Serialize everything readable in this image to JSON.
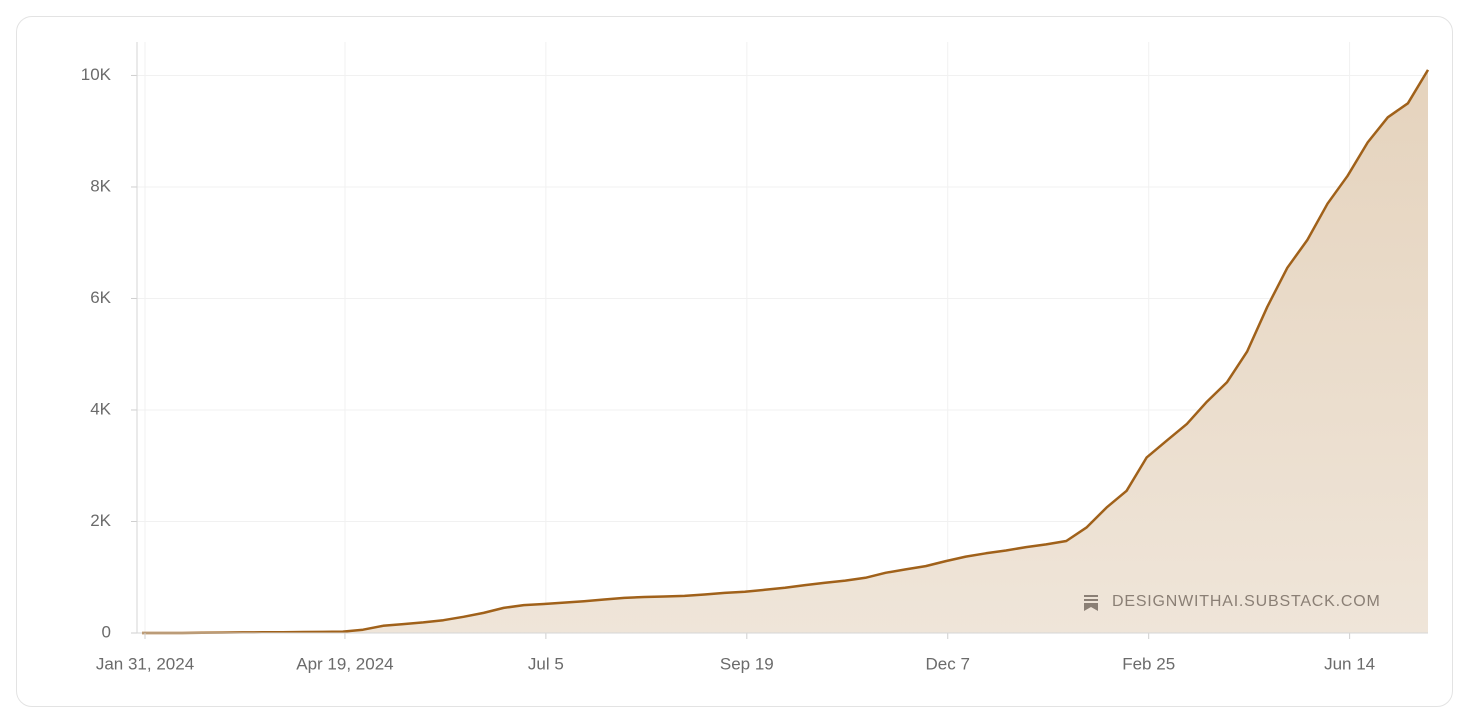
{
  "chart_data": {
    "type": "area",
    "categories": [
      "Jan 31, 2024",
      null,
      null,
      null,
      null,
      null,
      null,
      null,
      null,
      null,
      "Apr 19, 2024",
      null,
      null,
      null,
      null,
      null,
      null,
      null,
      null,
      null,
      "Jul 5",
      null,
      null,
      null,
      null,
      null,
      null,
      null,
      null,
      null,
      "Sep 19",
      null,
      null,
      null,
      null,
      null,
      null,
      null,
      null,
      null,
      "Dec 7",
      null,
      null,
      null,
      null,
      null,
      null,
      null,
      null,
      null,
      "Feb 25",
      null,
      null,
      null,
      null,
      null,
      null,
      null,
      null,
      null,
      "Jun 14",
      null,
      null,
      null,
      null
    ],
    "values": [
      0,
      0,
      0,
      5,
      8,
      10,
      12,
      15,
      18,
      20,
      25,
      60,
      130,
      160,
      190,
      230,
      290,
      360,
      450,
      500,
      520,
      545,
      570,
      600,
      630,
      645,
      655,
      665,
      690,
      720,
      740,
      775,
      810,
      860,
      900,
      940,
      990,
      1080,
      1140,
      1200,
      1290,
      1370,
      1430,
      1480,
      1540,
      1590,
      1650,
      1890,
      2250,
      2550,
      3150,
      3450,
      3750,
      4150,
      4500,
      5050,
      5850,
      6550,
      7050,
      7700,
      8200,
      8800,
      9250,
      9500,
      10100
    ],
    "color": "#a0611a",
    "fill_color": "#e9dccb",
    "ylim": [
      0,
      10600
    ],
    "yticks": [
      0,
      {
        "value": 2000,
        "label": "2K"
      },
      {
        "value": 4000,
        "label": "4K"
      },
      {
        "value": 6000,
        "label": "6K"
      },
      {
        "value": 8000,
        "label": "8K"
      },
      {
        "value": 10000,
        "label": "10K"
      }
    ],
    "grid": true,
    "watermark": "DESIGNWITHAI.SUBSTACK.COM"
  }
}
